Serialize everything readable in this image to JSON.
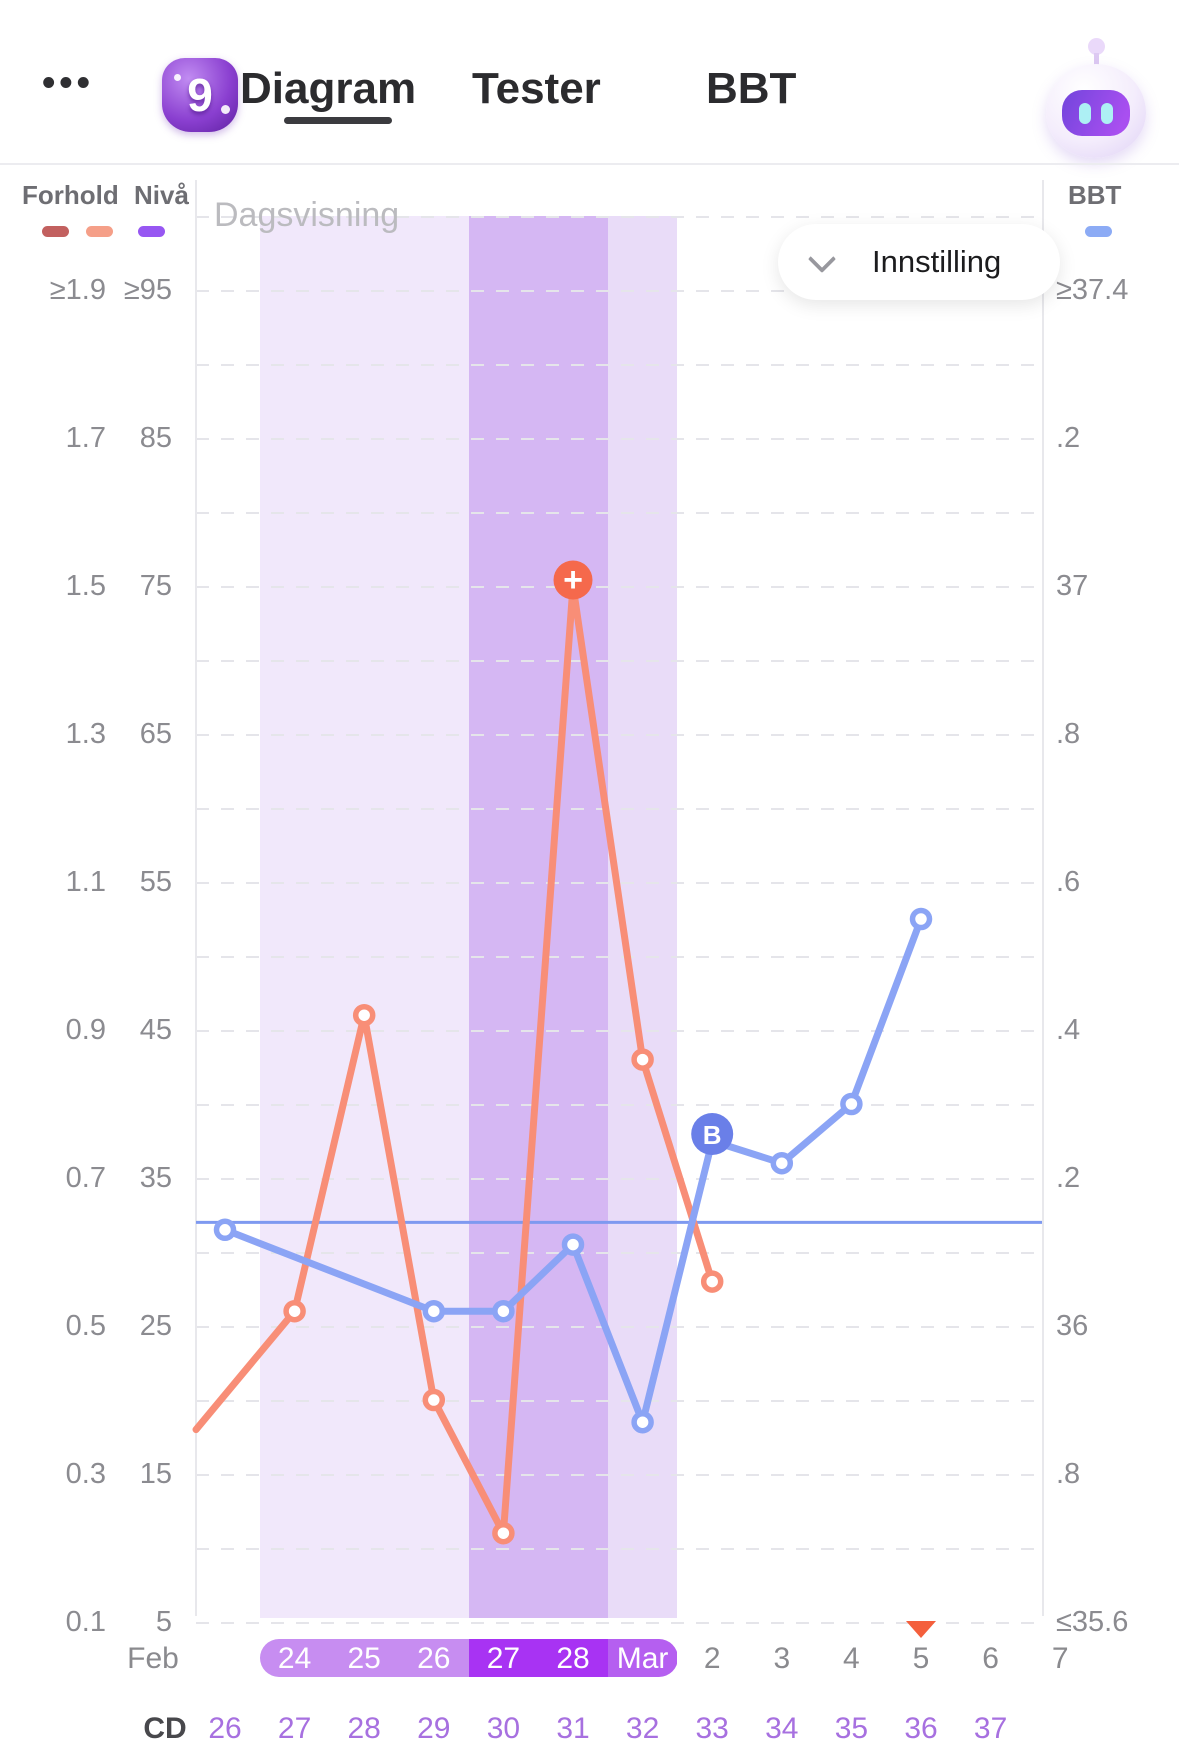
{
  "header": {
    "menu_ellipsis": "•••",
    "badge_count": "9",
    "tabs": [
      {
        "label": "Diagram",
        "active": true
      },
      {
        "label": "Tester",
        "active": false
      },
      {
        "label": "BBT",
        "active": false
      }
    ]
  },
  "legend": {
    "forhold_label": "Forhold",
    "niva_label": "Nivå",
    "bbt_label": "BBT",
    "colors": {
      "forhold_dark": "#c2605f",
      "forhold_light": "#f59f88",
      "niva": "#9757f2",
      "bbt": "#8cabf5"
    }
  },
  "toolbar": {
    "view_label": "Dagsvisning",
    "settings_label": "Innstilling"
  },
  "axes": {
    "left_ratio": [
      "≥1.9",
      "1.7",
      "1.5",
      "1.3",
      "1.1",
      "0.9",
      "0.7",
      "0.5",
      "0.3",
      "0.1"
    ],
    "left_level": [
      "≥95",
      "85",
      "75",
      "65",
      "55",
      "45",
      "35",
      "25",
      "15",
      "5"
    ],
    "right_bbt": [
      "≥37.4",
      ".2",
      "37",
      ".8",
      ".6",
      ".4",
      ".2",
      "36",
      ".8",
      "≤35.6"
    ]
  },
  "chart_data": {
    "type": "line",
    "x_dates": [
      "Feb",
      "24",
      "25",
      "26",
      "27",
      "28",
      "Mar",
      "2",
      "3",
      "4",
      "5",
      "6",
      "7"
    ],
    "cycle_days": [
      "26",
      "27",
      "28",
      "29",
      "30",
      "31",
      "32",
      "33",
      "34",
      "35",
      "36",
      "37"
    ],
    "level_axis_range": [
      5,
      95
    ],
    "ratio_axis_range": [
      0.1,
      1.9
    ],
    "bbt_axis_range": [
      35.6,
      37.4
    ],
    "grid": "dashed-horizontal",
    "series": [
      {
        "name": "test-level",
        "color": "#f88e77",
        "points": [
          {
            "cd": 26,
            "level": 18,
            "edge": true,
            "dot": false
          },
          {
            "cd": 27,
            "level": 26,
            "dot": true
          },
          {
            "cd": 28,
            "level": 46,
            "dot": true
          },
          {
            "cd": 29,
            "level": 20,
            "dot": true
          },
          {
            "cd": 30,
            "level": 11,
            "dot": true
          },
          {
            "cd": 31,
            "level": 75,
            "dot": false,
            "marker": "plus"
          },
          {
            "cd": 32,
            "level": 43,
            "dot": true
          },
          {
            "cd": 33,
            "level": 28,
            "dot": true
          }
        ]
      },
      {
        "name": "bbt",
        "color": "#8ba4f5",
        "points": [
          {
            "cd": 26,
            "bbt": 36.13,
            "dot": true
          },
          {
            "cd": 29,
            "bbt": 36.02,
            "dot": true
          },
          {
            "cd": 30,
            "bbt": 36.02,
            "dot": true
          },
          {
            "cd": 31,
            "bbt": 36.11,
            "dot": true
          },
          {
            "cd": 32,
            "bbt": 35.87,
            "dot": true
          },
          {
            "cd": 33,
            "bbt": 36.25,
            "dot": false,
            "marker": "B"
          },
          {
            "cd": 34,
            "bbt": 36.22,
            "dot": true
          },
          {
            "cd": 35,
            "bbt": 36.3,
            "dot": true
          },
          {
            "cd": 36,
            "bbt": 36.55,
            "dot": true
          }
        ]
      }
    ],
    "coverline_bbt": 36.14,
    "coverline_color": "#7e99f0",
    "marker_colors": {
      "plus": "#f5694c",
      "B": "#6a7fe8",
      "ovulation_triangle": "#f45f3c"
    },
    "fertile_window": {
      "light_dates": [
        "24",
        "25",
        "26"
      ],
      "peak_dates": [
        "27",
        "28"
      ],
      "end_date": "Mar"
    },
    "band_colors": {
      "light": "#f1e8fb",
      "peak": "#d5b7f3",
      "end": "#e9dcf8"
    },
    "ovulation_marker_date": "5"
  },
  "footer": {
    "month_label": "Feb",
    "cd_label": "CD",
    "dates": [
      {
        "label": "Feb",
        "style": "month"
      },
      {
        "label": "24",
        "style": "fertile"
      },
      {
        "label": "25",
        "style": "fertile"
      },
      {
        "label": "26",
        "style": "fertile"
      },
      {
        "label": "27",
        "style": "peak"
      },
      {
        "label": "28",
        "style": "peak"
      },
      {
        "label": "Mar",
        "style": "fertile-end"
      },
      {
        "label": "2",
        "style": "plain"
      },
      {
        "label": "3",
        "style": "plain"
      },
      {
        "label": "4",
        "style": "plain"
      },
      {
        "label": "5",
        "style": "plain"
      },
      {
        "label": "6",
        "style": "plain"
      },
      {
        "label": "7",
        "style": "plain"
      }
    ],
    "pill_colors": {
      "fertile": "#c78df1",
      "peak": "#a833f3",
      "fertile_end": "#b55ff0"
    }
  }
}
